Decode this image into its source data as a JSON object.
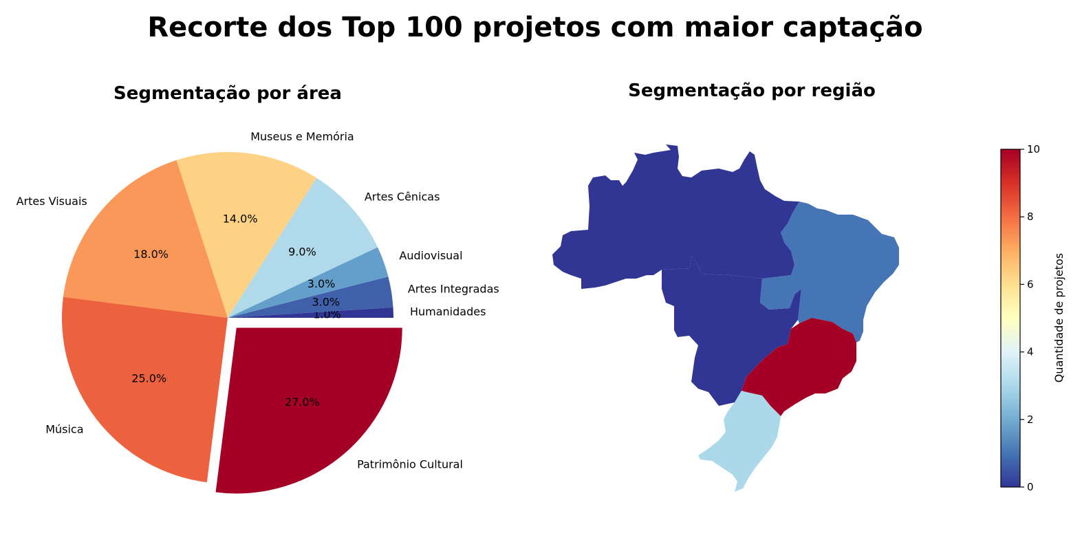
{
  "title": "Recorte dos Top 100 projetos com maior captação",
  "chart_data": [
    {
      "type": "pie",
      "title": "Segmentação por área",
      "slices": [
        {
          "label": "Patrimônio Cultural",
          "value": 27.0,
          "pct_label": "27.0%",
          "color": "#a50026",
          "exploded": true
        },
        {
          "label": "Humanidades",
          "value": 1.0,
          "pct_label": "1.0%",
          "color": "#313695"
        },
        {
          "label": "Artes Integradas",
          "value": 3.0,
          "pct_label": "3.0%",
          "color": "#4160aa"
        },
        {
          "label": "Audiovisual",
          "value": 3.0,
          "pct_label": "3.0%",
          "color": "#649fcc"
        },
        {
          "label": "Artes Cênicas",
          "value": 9.0,
          "pct_label": "9.0%",
          "color": "#b0dae9"
        },
        {
          "label": "Museus e Memória",
          "value": 14.0,
          "pct_label": "14.0%",
          "color": "#fdd284"
        },
        {
          "label": "Artes Visuais",
          "value": 18.0,
          "pct_label": "18.0%",
          "color": "#f99858"
        },
        {
          "label": "Música",
          "value": 25.0,
          "pct_label": "25.0%",
          "color": "#ec613e"
        }
      ]
    },
    {
      "type": "choropleth",
      "title": "Segmentação por região",
      "colorbar": {
        "label": "Quantidade de projetos",
        "range": [
          0,
          10
        ],
        "ticks": [
          "0",
          "2",
          "4",
          "6",
          "8",
          "10"
        ],
        "colors": [
          "#313695",
          "#4575b4",
          "#74add1",
          "#abd9e9",
          "#e0f3f8",
          "#ffffbf",
          "#fee090",
          "#fdae61",
          "#f46d43",
          "#d73027",
          "#a50026"
        ]
      },
      "regions": [
        {
          "name": "Norte",
          "color": "#313695"
        },
        {
          "name": "Centro-Oeste",
          "color": "#313695"
        },
        {
          "name": "Nordeste",
          "color": "#4575b4"
        },
        {
          "name": "Sudeste",
          "color": "#a50026"
        },
        {
          "name": "Sul",
          "color": "#abd9e9"
        }
      ]
    }
  ]
}
